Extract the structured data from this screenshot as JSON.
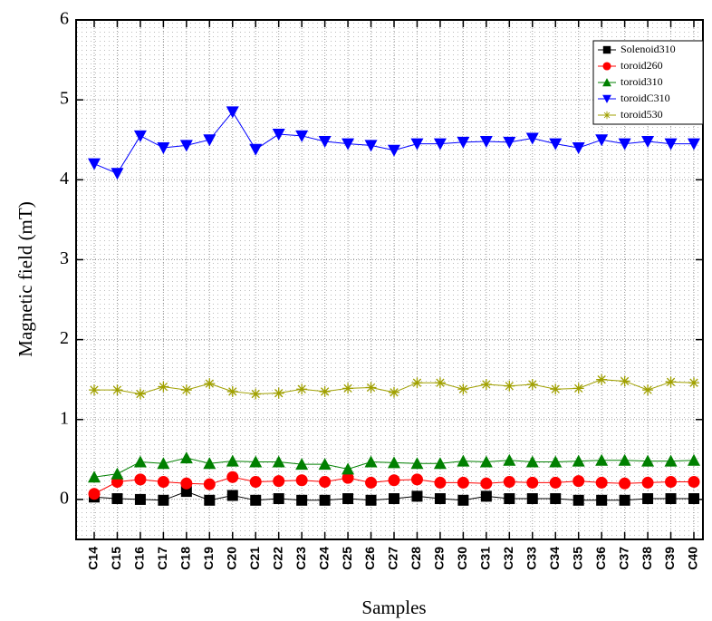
{
  "chart_data": {
    "type": "line",
    "x_label": "Samples",
    "y_label": "Magnetic field (mT)",
    "categories": [
      "C14",
      "C15",
      "C16",
      "C17",
      "C18",
      "C19",
      "C20",
      "C21",
      "C22",
      "C23",
      "C24",
      "C25",
      "C26",
      "C27",
      "C28",
      "C29",
      "C30",
      "C31",
      "C32",
      "C33",
      "C34",
      "C35",
      "C36",
      "C37",
      "C38",
      "C39",
      "C40"
    ],
    "ylim": [
      -0.5,
      6
    ],
    "yticks": [
      0,
      1,
      2,
      3,
      4,
      5,
      6
    ],
    "grid": true,
    "legend": "upper right",
    "series": [
      {
        "name": "Solenoid310",
        "color": "#000000",
        "marker": "square",
        "values": [
          0.03,
          0.01,
          0.0,
          -0.01,
          0.1,
          -0.01,
          0.05,
          -0.01,
          0.01,
          -0.01,
          -0.01,
          0.01,
          -0.01,
          0.01,
          0.04,
          0.01,
          -0.01,
          0.04,
          0.01,
          0.01,
          0.01,
          -0.01,
          -0.01,
          -0.01,
          0.01,
          0.01,
          0.01
        ]
      },
      {
        "name": "toroid260",
        "color": "#ff0000",
        "marker": "circle",
        "values": [
          0.07,
          0.22,
          0.25,
          0.22,
          0.2,
          0.19,
          0.28,
          0.22,
          0.23,
          0.24,
          0.22,
          0.27,
          0.21,
          0.24,
          0.25,
          0.21,
          0.21,
          0.2,
          0.22,
          0.21,
          0.21,
          0.23,
          0.21,
          0.2,
          0.21,
          0.22,
          0.22
        ]
      },
      {
        "name": "toroid310",
        "color": "#008000",
        "marker": "triangle-up",
        "values": [
          0.28,
          0.32,
          0.47,
          0.45,
          0.52,
          0.45,
          0.48,
          0.47,
          0.47,
          0.44,
          0.44,
          0.38,
          0.47,
          0.46,
          0.45,
          0.45,
          0.48,
          0.47,
          0.49,
          0.47,
          0.47,
          0.48,
          0.49,
          0.49,
          0.48,
          0.48,
          0.49
        ]
      },
      {
        "name": "toroidC310",
        "color": "#0000ff",
        "marker": "triangle-down",
        "values": [
          4.2,
          4.08,
          4.55,
          4.4,
          4.43,
          4.5,
          4.85,
          4.38,
          4.57,
          4.55,
          4.48,
          4.45,
          4.43,
          4.37,
          4.45,
          4.45,
          4.47,
          4.48,
          4.47,
          4.52,
          4.45,
          4.4,
          4.5,
          4.45,
          4.48,
          4.45,
          4.45
        ]
      },
      {
        "name": "toroid530",
        "color": "#a0a000",
        "marker": "star",
        "values": [
          1.37,
          1.37,
          1.32,
          1.41,
          1.37,
          1.45,
          1.35,
          1.32,
          1.33,
          1.38,
          1.35,
          1.39,
          1.4,
          1.34,
          1.46,
          1.46,
          1.38,
          1.44,
          1.42,
          1.44,
          1.38,
          1.39,
          1.5,
          1.48,
          1.37,
          1.47,
          1.46
        ]
      }
    ]
  }
}
